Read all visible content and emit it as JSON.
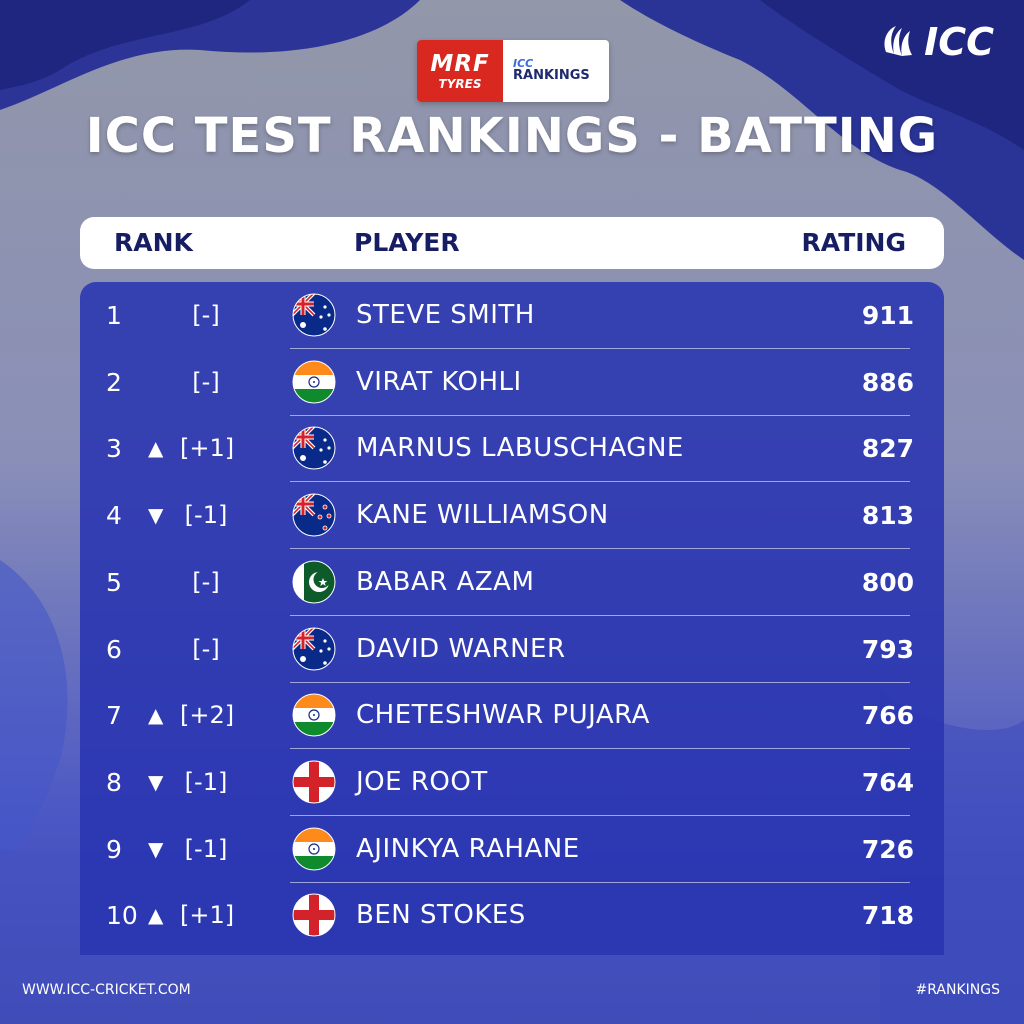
{
  "brand": {
    "mrf_name": "MRF",
    "mrf_sub": "TYRES",
    "icc_small": "ICC",
    "rankings": "RANKINGS",
    "icc": "ICC"
  },
  "title": "ICC TEST RANKINGS - BATTING",
  "columns": {
    "rank": "RANK",
    "player": "PLAYER",
    "rating": "RATING"
  },
  "rows": [
    {
      "rank": "1",
      "arrow": "",
      "change": "[-]",
      "flag": "australia",
      "player": "STEVE SMITH",
      "rating": "911"
    },
    {
      "rank": "2",
      "arrow": "",
      "change": "[-]",
      "flag": "india",
      "player": "VIRAT KOHLI",
      "rating": "886"
    },
    {
      "rank": "3",
      "arrow": "▲",
      "change": "[+1]",
      "flag": "australia",
      "player": "MARNUS LABUSCHAGNE",
      "rating": "827"
    },
    {
      "rank": "4",
      "arrow": "▼",
      "change": "[-1]",
      "flag": "new-zealand",
      "player": "KANE WILLIAMSON",
      "rating": "813"
    },
    {
      "rank": "5",
      "arrow": "",
      "change": "[-]",
      "flag": "pakistan",
      "player": "BABAR AZAM",
      "rating": "800"
    },
    {
      "rank": "6",
      "arrow": "",
      "change": "[-]",
      "flag": "australia",
      "player": "DAVID WARNER",
      "rating": "793"
    },
    {
      "rank": "7",
      "arrow": "▲",
      "change": "[+2]",
      "flag": "india",
      "player": "CHETESHWAR PUJARA",
      "rating": "766"
    },
    {
      "rank": "8",
      "arrow": "▼",
      "change": "[-1]",
      "flag": "england",
      "player": "JOE ROOT",
      "rating": "764"
    },
    {
      "rank": "9",
      "arrow": "▼",
      "change": "[-1]",
      "flag": "india",
      "player": "AJINKYA RAHANE",
      "rating": "726"
    },
    {
      "rank": "10",
      "arrow": "▲",
      "change": "[+1]",
      "flag": "england",
      "player": "BEN STOKES",
      "rating": "718"
    }
  ],
  "footer": {
    "website": "WWW.ICC-CRICKET.COM",
    "hashtag": "#RANKINGS"
  },
  "colors": {
    "navy": "#161d63",
    "accent": "#3c47b0",
    "mrf_red": "#d8281f"
  }
}
